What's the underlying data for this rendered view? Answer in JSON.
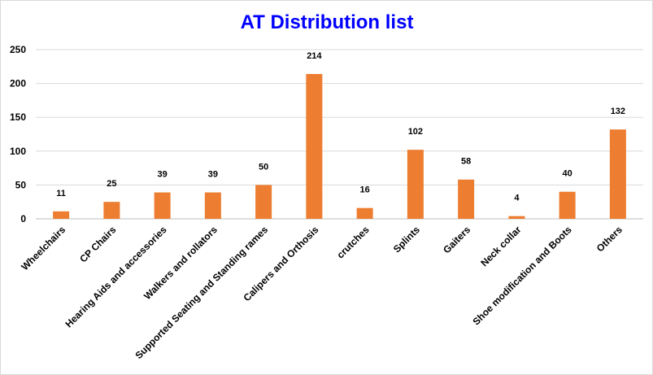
{
  "colors": {
    "bar": "#ED7D31",
    "title": "#0000FF",
    "grid": "#D9D9D9",
    "axis": "#BFBFBF"
  },
  "chart_data": {
    "type": "bar",
    "title": "AT Distribution list",
    "xlabel": "",
    "ylabel": "",
    "ylim": [
      0,
      250
    ],
    "yticks": [
      0,
      50,
      100,
      150,
      200,
      250
    ],
    "grid": true,
    "legend": "none",
    "categories": [
      "Wheelchairs",
      "CP Chairs",
      "Hearing Aids and accessories",
      "Walkers and rollators",
      "Supported Seating and Standing rames",
      "Calipers and Orthosis",
      "crutches",
      "Splints",
      "Gaiters",
      "Neck collar",
      "Shoe modification and Boots",
      "Others"
    ],
    "values": [
      11,
      25,
      39,
      39,
      50,
      214,
      16,
      102,
      58,
      4,
      40,
      132
    ],
    "data_labels": [
      "11",
      "25",
      "39",
      "39",
      "50",
      "214",
      "16",
      "102",
      "58",
      "4",
      "40",
      "132"
    ]
  }
}
